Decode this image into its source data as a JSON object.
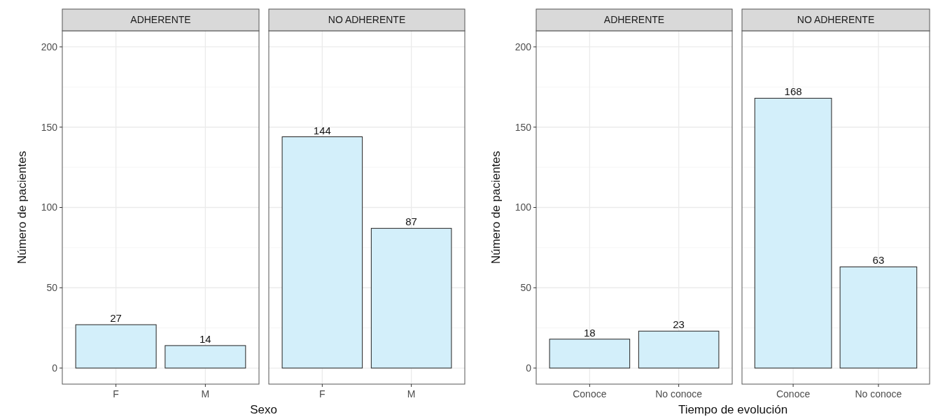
{
  "chart_data": [
    {
      "type": "bar",
      "title": "ADHERENTE",
      "categories": [
        "F",
        "M"
      ],
      "values": [
        27,
        14
      ],
      "color": "#d3effa",
      "ylim": [
        -10,
        210
      ],
      "yticks": [
        0,
        50,
        100,
        150,
        200
      ],
      "grid": true,
      "data_labels": true,
      "ylabel": "Número de pacientes",
      "xlabel": "Sexo"
    },
    {
      "type": "bar",
      "title": "NO ADHERENTE",
      "categories": [
        "F",
        "M"
      ],
      "values": [
        144,
        87
      ],
      "color": "#d3effa",
      "ylim": [
        -10,
        210
      ],
      "yticks": [
        0,
        50,
        100,
        150,
        200
      ],
      "grid": true,
      "data_labels": true,
      "tick_labels": "x"
    },
    {
      "type": "bar",
      "title": "ADHERENTE",
      "categories": [
        "Conoce",
        "No conoce"
      ],
      "values": [
        18,
        23
      ],
      "color": "#d3effa",
      "ylim": [
        -10,
        210
      ],
      "yticks": [
        0,
        50,
        100,
        150,
        200
      ],
      "grid": true,
      "data_labels": true,
      "ylabel": "Número de pacientes",
      "xlabel": "Tiempo de evolución"
    },
    {
      "type": "bar",
      "title": "NO ADHERENTE",
      "categories": [
        "Conoce",
        "No conoce"
      ],
      "values": [
        168,
        63
      ],
      "color": "#d3effa",
      "ylim": [
        -10,
        210
      ],
      "yticks": [
        0,
        50,
        100,
        150,
        200
      ],
      "grid": true,
      "data_labels": true,
      "tick_labels": "x"
    }
  ]
}
